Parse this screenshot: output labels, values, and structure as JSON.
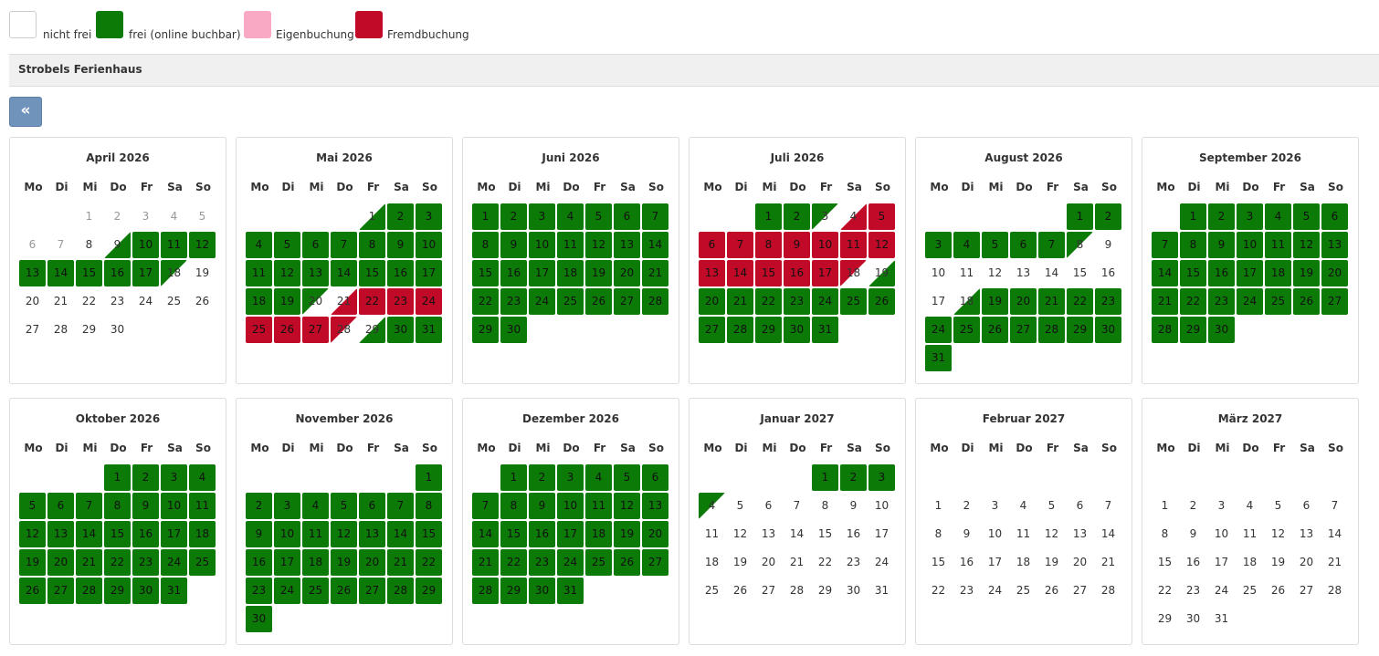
{
  "legend": [
    {
      "label": "nicht frei",
      "color": "#ffffff"
    },
    {
      "label": "frei (online buchbar)",
      "color": "#0c7a06"
    },
    {
      "label": "Eigenbuchung",
      "color": "#f9a9c3"
    },
    {
      "label": "Fremdbuchung",
      "color": "#c10a28"
    }
  ],
  "colors": {
    "frei": "#0c7a06",
    "fremd": "#c10a28",
    "eigen": "#f9a9c3"
  },
  "property_name": "Strobels Ferienhaus",
  "back_button_label": "«",
  "weekdays": [
    "Mo",
    "Di",
    "Mi",
    "Do",
    "Fr",
    "Sa",
    "So"
  ],
  "months": [
    {
      "title": "April 2026",
      "first_dow": 2,
      "days": 30,
      "status": {
        "1": "past",
        "2": "past",
        "3": "past",
        "4": "past",
        "5": "past",
        "6": "past",
        "7": "past",
        "9": "split-in",
        "10": "free",
        "11": "free",
        "12": "free",
        "13": "free",
        "14": "free",
        "15": "free",
        "16": "free",
        "17": "free",
        "18": "split-out"
      }
    },
    {
      "title": "Mai 2026",
      "first_dow": 4,
      "days": 31,
      "status": {
        "1": "split-in",
        "2": "free",
        "3": "free",
        "4": "free",
        "5": "free",
        "6": "free",
        "7": "free",
        "8": "free",
        "9": "free",
        "10": "free",
        "11": "free",
        "12": "free",
        "13": "free",
        "14": "free",
        "15": "free",
        "16": "free",
        "17": "free",
        "18": "free",
        "19": "free",
        "20": "split-out",
        "21": "split-fin",
        "22": "fremd",
        "23": "fremd",
        "24": "fremd",
        "25": "fremd",
        "26": "fremd",
        "27": "fremd",
        "28": "split-fout",
        "29": "split-in",
        "30": "free",
        "31": "free"
      }
    },
    {
      "title": "Juni 2026",
      "first_dow": 0,
      "days": 30,
      "status": {
        "all": "free"
      }
    },
    {
      "title": "Juli 2026",
      "first_dow": 2,
      "days": 31,
      "status": {
        "1": "free",
        "2": "free",
        "3": "split-out",
        "4": "split-fin",
        "5": "fremd",
        "6": "fremd",
        "7": "fremd",
        "8": "fremd",
        "9": "fremd",
        "10": "fremd",
        "11": "fremd",
        "12": "fremd",
        "13": "fremd",
        "14": "fremd",
        "15": "fremd",
        "16": "fremd",
        "17": "fremd",
        "18": "split-fout",
        "19": "split-in",
        "20": "free",
        "21": "free",
        "22": "free",
        "23": "free",
        "24": "free",
        "25": "free",
        "26": "free",
        "27": "free",
        "28": "free",
        "29": "free",
        "30": "free",
        "31": "free"
      }
    },
    {
      "title": "August 2026",
      "first_dow": 5,
      "days": 31,
      "status": {
        "1": "free",
        "2": "free",
        "3": "free",
        "4": "free",
        "5": "free",
        "6": "free",
        "7": "free",
        "8": "split-out",
        "18": "split-in",
        "19": "free",
        "20": "free",
        "21": "free",
        "22": "free",
        "23": "free",
        "24": "free",
        "25": "free",
        "26": "free",
        "27": "free",
        "28": "free",
        "29": "free",
        "30": "free",
        "31": "free"
      }
    },
    {
      "title": "September 2026",
      "first_dow": 1,
      "days": 30,
      "status": {
        "all": "free"
      }
    },
    {
      "title": "Oktober 2026",
      "first_dow": 3,
      "days": 31,
      "status": {
        "all": "free"
      }
    },
    {
      "title": "November 2026",
      "first_dow": 6,
      "days": 30,
      "status": {
        "all": "free"
      }
    },
    {
      "title": "Dezember 2026",
      "first_dow": 1,
      "days": 31,
      "status": {
        "all": "free"
      }
    },
    {
      "title": "Januar 2027",
      "first_dow": 4,
      "days": 31,
      "status": {
        "1": "free",
        "2": "free",
        "3": "free",
        "4": "split-out"
      }
    },
    {
      "title": "Februar 2027",
      "first_dow": 0,
      "days": 28,
      "status": {},
      "start_row": 1
    },
    {
      "title": "März 2027",
      "first_dow": 0,
      "days": 31,
      "status": {},
      "start_row": 1
    }
  ]
}
